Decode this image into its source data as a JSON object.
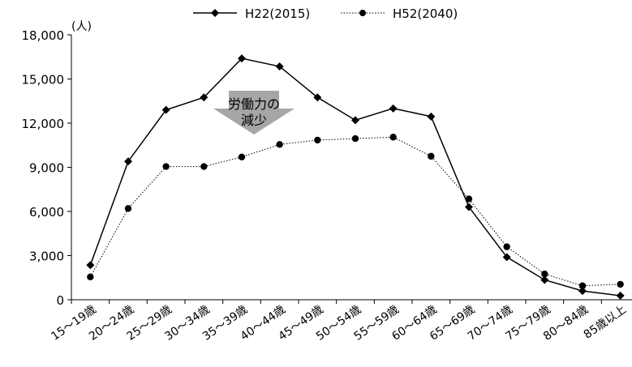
{
  "chart_data": {
    "type": "line",
    "ylabel": "(人)",
    "categories": [
      "15～19歳",
      "20～24歳",
      "25～29歳",
      "30～34歳",
      "35～39歳",
      "40～44歳",
      "45～49歳",
      "50～54歳",
      "55～59歳",
      "60～64歳",
      "65～69歳",
      "70～74歳",
      "75～79歳",
      "80～84歳",
      "85歳以上"
    ],
    "yticks": [
      "0",
      "3,000",
      "6,000",
      "9,000",
      "12,000",
      "15,000",
      "18,000"
    ],
    "ylim": [
      0,
      18000
    ],
    "grid": false,
    "legend": "top",
    "series": [
      {
        "name": "H22(2015)",
        "style": "solid",
        "marker": "diamond",
        "color": "#000000",
        "values": [
          2350,
          9400,
          12900,
          13750,
          16400,
          15850,
          13750,
          12200,
          13000,
          12450,
          6300,
          2900,
          1350,
          600,
          280
        ]
      },
      {
        "name": "H52(2040)",
        "style": "dotted",
        "marker": "circle",
        "color": "#000000",
        "values": [
          1550,
          6200,
          9050,
          9050,
          9700,
          10550,
          10850,
          10950,
          11050,
          9750,
          6850,
          3600,
          1750,
          950,
          1050
        ]
      }
    ],
    "annotation": {
      "line1": "労働力の",
      "line2": "減少",
      "color": "#a6a6a6"
    }
  }
}
